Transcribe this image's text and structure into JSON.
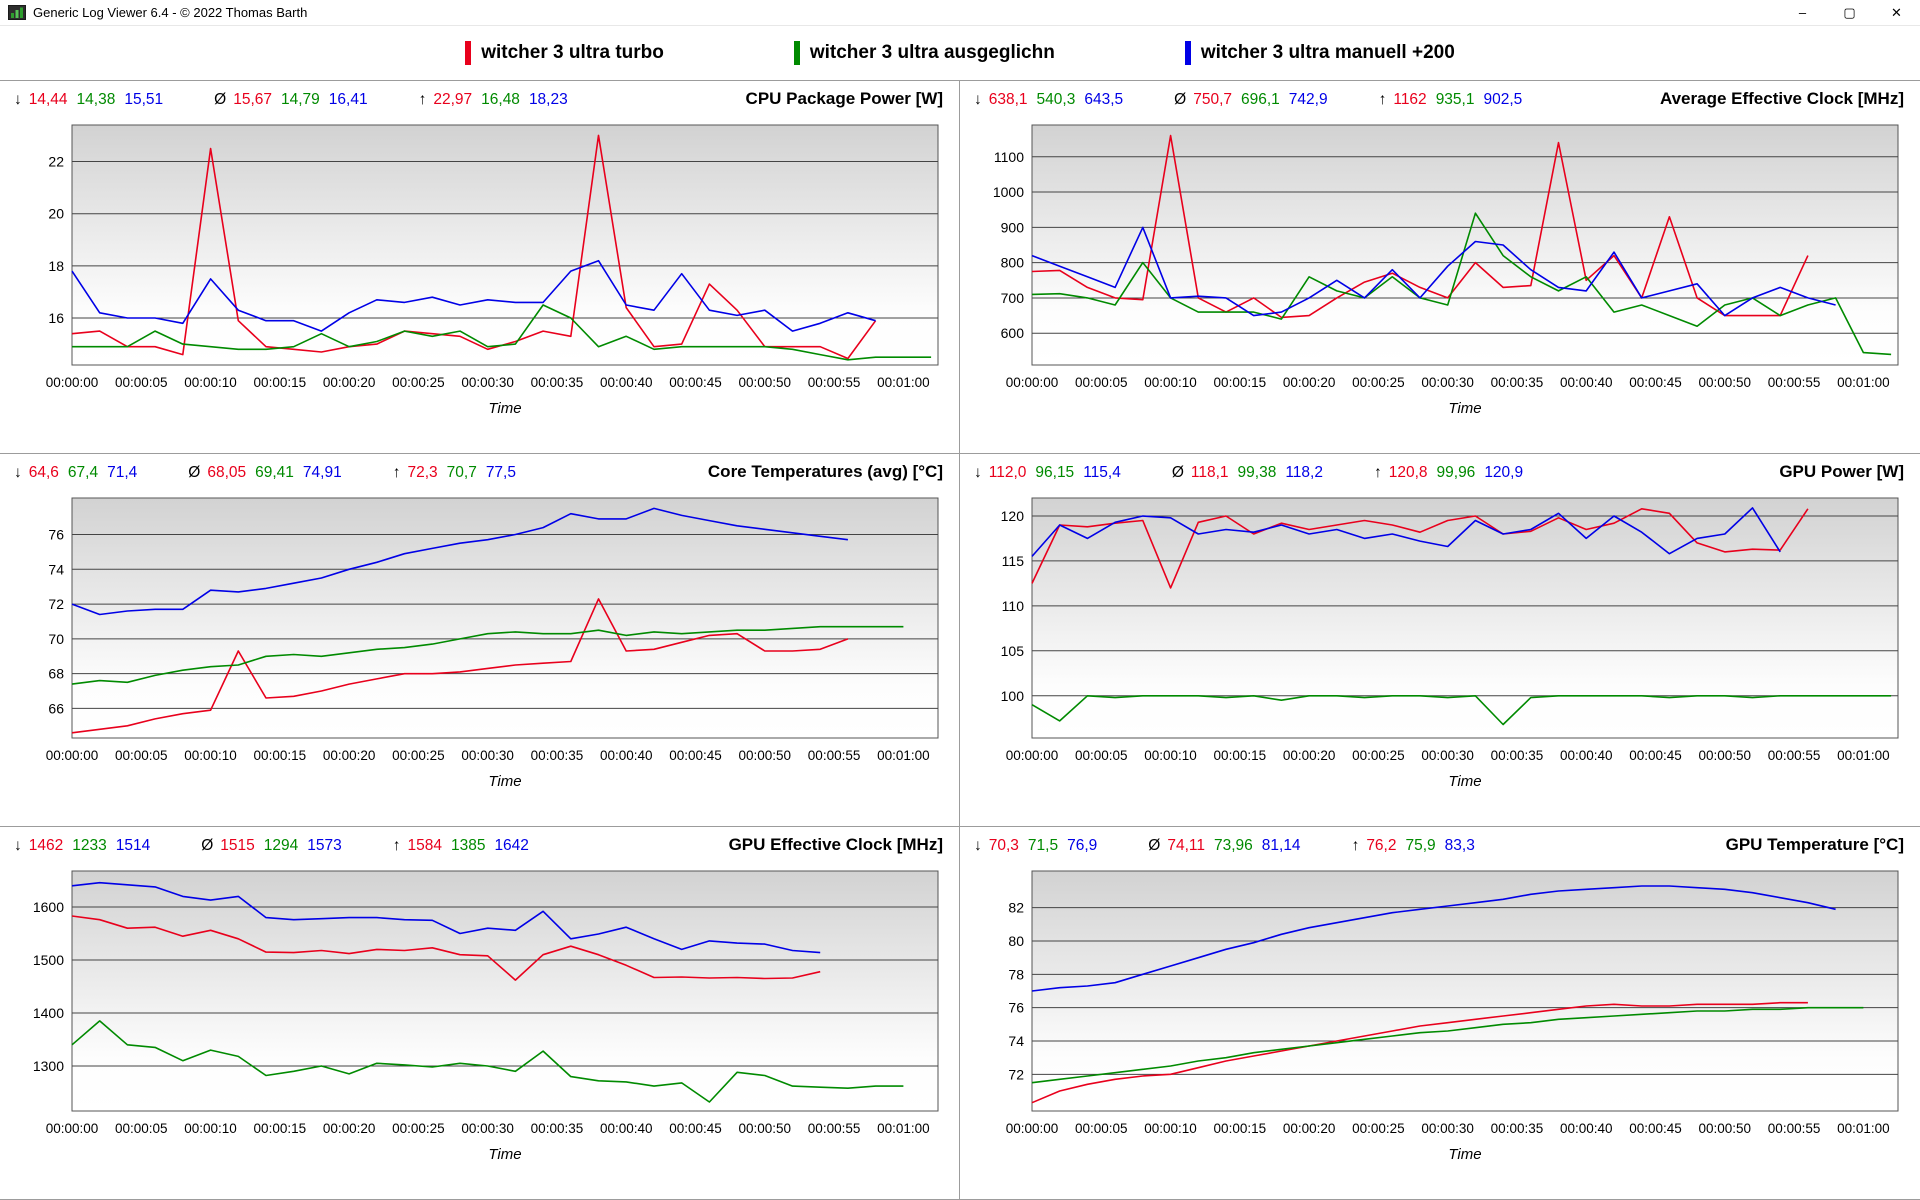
{
  "window": {
    "title": "Generic Log Viewer 6.4 - © 2022 Thomas Barth",
    "minimize_label": "–",
    "maximize_label": "▢",
    "close_label": "✕"
  },
  "legend": {
    "items": [
      {
        "label": "witcher 3 ultra turbo",
        "color": "#e8001c"
      },
      {
        "label": "witcher 3 ultra ausgeglichn",
        "color": "#008a00"
      },
      {
        "label": "witcher 3 ultra manuell +200",
        "color": "#0000e6"
      }
    ]
  },
  "series_colors": [
    "#e8001c",
    "#008a00",
    "#0000e6"
  ],
  "stats_symbols": {
    "min": "↓",
    "avg": "Ø",
    "max": "↑"
  },
  "x_axis": {
    "label": "Time",
    "domain": 62.5,
    "tick_times": [
      0,
      5,
      10,
      15,
      20,
      25,
      30,
      35,
      40,
      45,
      50,
      55,
      60
    ],
    "tick_labels": [
      "00:00:00",
      "00:00:05",
      "00:00:10",
      "00:00:15",
      "00:00:20",
      "00:00:25",
      "00:00:30",
      "00:00:35",
      "00:00:40",
      "00:00:45",
      "00:00:50",
      "00:00:55",
      "00:01:00"
    ]
  },
  "chart_data": [
    {
      "type": "line",
      "title": "CPU Package Power [W]",
      "stats": {
        "min": [
          "14,44",
          "14,38",
          "15,51"
        ],
        "avg": [
          "15,67",
          "14,79",
          "16,41"
        ],
        "max": [
          "22,97",
          "16,48",
          "18,23"
        ]
      },
      "y_ticks": [
        16,
        18,
        20,
        22
      ],
      "y_range": [
        14.2,
        23.4
      ],
      "series": [
        {
          "name": "witcher 3 ultra turbo",
          "color_index": 0,
          "dt": 2,
          "values": [
            15.4,
            15.5,
            14.9,
            14.9,
            14.6,
            22.5,
            15.9,
            14.9,
            14.8,
            14.7,
            14.9,
            15.0,
            15.5,
            15.4,
            15.3,
            14.8,
            15.1,
            15.5,
            15.3,
            23.0,
            16.4,
            14.9,
            15.0,
            17.3,
            16.3,
            14.9,
            14.9,
            14.9,
            14.45,
            15.9
          ]
        },
        {
          "name": "witcher 3 ultra ausgeglichn",
          "color_index": 1,
          "dt": 2,
          "values": [
            14.9,
            14.9,
            14.9,
            15.5,
            15.0,
            14.9,
            14.8,
            14.8,
            14.9,
            15.4,
            14.9,
            15.1,
            15.5,
            15.3,
            15.5,
            14.9,
            15.0,
            16.5,
            16.0,
            14.9,
            15.3,
            14.8,
            14.9,
            14.9,
            14.9,
            14.9,
            14.8,
            14.6,
            14.4,
            14.5,
            14.5,
            14.5
          ]
        },
        {
          "name": "witcher 3 ultra manuell +200",
          "color_index": 2,
          "dt": 2,
          "values": [
            17.8,
            16.2,
            16.0,
            16.0,
            15.8,
            17.5,
            16.3,
            15.9,
            15.9,
            15.5,
            16.2,
            16.7,
            16.6,
            16.8,
            16.5,
            16.7,
            16.6,
            16.6,
            17.8,
            18.2,
            16.5,
            16.3,
            17.7,
            16.3,
            16.1,
            16.3,
            15.5,
            15.8,
            16.2,
            15.9
          ]
        }
      ]
    },
    {
      "type": "line",
      "title": "Average Effective Clock [MHz]",
      "stats": {
        "min": [
          "638,1",
          "540,3",
          "643,5"
        ],
        "avg": [
          "750,7",
          "696,1",
          "742,9"
        ],
        "max": [
          "1162",
          "935,1",
          "902,5"
        ]
      },
      "y_ticks": [
        600,
        700,
        800,
        900,
        1000,
        1100
      ],
      "y_range": [
        510,
        1190
      ],
      "series": [
        {
          "name": "witcher 3 ultra turbo",
          "color_index": 0,
          "dt": 2,
          "values": [
            775,
            778,
            730,
            700,
            695,
            1160,
            700,
            660,
            700,
            645,
            650,
            700,
            745,
            770,
            730,
            700,
            800,
            730,
            735,
            1140,
            750,
            820,
            700,
            930,
            700,
            650,
            650,
            650,
            820
          ]
        },
        {
          "name": "witcher 3 ultra ausgeglichn",
          "color_index": 1,
          "dt": 2,
          "values": [
            710,
            712,
            700,
            680,
            800,
            700,
            660,
            660,
            660,
            640,
            760,
            720,
            700,
            760,
            700,
            680,
            940,
            820,
            760,
            720,
            760,
            660,
            680,
            650,
            620,
            680,
            700,
            650,
            680,
            700,
            545,
            540
          ]
        },
        {
          "name": "witcher 3 ultra manuell +200",
          "color_index": 2,
          "dt": 2,
          "values": [
            820,
            790,
            760,
            730,
            900,
            700,
            705,
            700,
            650,
            660,
            700,
            750,
            700,
            780,
            700,
            790,
            860,
            850,
            780,
            730,
            720,
            830,
            700,
            720,
            740,
            650,
            700,
            730,
            700,
            680
          ]
        }
      ]
    },
    {
      "type": "line",
      "title": "Core Temperatures (avg) [°C]",
      "stats": {
        "min": [
          "64,6",
          "67,4",
          "71,4"
        ],
        "avg": [
          "68,05",
          "69,41",
          "74,91"
        ],
        "max": [
          "72,3",
          "70,7",
          "77,5"
        ]
      },
      "y_ticks": [
        66,
        68,
        70,
        72,
        74,
        76
      ],
      "y_range": [
        64.3,
        78.1
      ],
      "series": [
        {
          "name": "witcher 3 ultra turbo",
          "color_index": 0,
          "dt": 2,
          "values": [
            64.6,
            64.8,
            65.0,
            65.4,
            65.7,
            65.9,
            69.3,
            66.6,
            66.7,
            67.0,
            67.4,
            67.7,
            68.0,
            68.0,
            68.1,
            68.3,
            68.5,
            68.6,
            68.7,
            72.3,
            69.3,
            69.4,
            69.8,
            70.2,
            70.3,
            69.3,
            69.3,
            69.4,
            70.0
          ]
        },
        {
          "name": "witcher 3 ultra ausgeglichn",
          "color_index": 1,
          "dt": 2,
          "values": [
            67.4,
            67.6,
            67.5,
            67.9,
            68.2,
            68.4,
            68.5,
            69.0,
            69.1,
            69.0,
            69.2,
            69.4,
            69.5,
            69.7,
            70.0,
            70.3,
            70.4,
            70.3,
            70.3,
            70.5,
            70.2,
            70.4,
            70.3,
            70.4,
            70.5,
            70.5,
            70.6,
            70.7,
            70.7,
            70.7,
            70.7
          ]
        },
        {
          "name": "witcher 3 ultra manuell +200",
          "color_index": 2,
          "dt": 2,
          "values": [
            72.0,
            71.4,
            71.6,
            71.7,
            71.7,
            72.8,
            72.7,
            72.9,
            73.2,
            73.5,
            74.0,
            74.4,
            74.9,
            75.2,
            75.5,
            75.7,
            76.0,
            76.4,
            77.2,
            76.9,
            76.9,
            77.5,
            77.1,
            76.8,
            76.5,
            76.3,
            76.1,
            75.9,
            75.7
          ]
        }
      ]
    },
    {
      "type": "line",
      "title": "GPU Power [W]",
      "stats": {
        "min": [
          "112,0",
          "96,15",
          "115,4"
        ],
        "avg": [
          "118,1",
          "99,38",
          "118,2"
        ],
        "max": [
          "120,8",
          "99,96",
          "120,9"
        ]
      },
      "y_ticks": [
        100,
        105,
        110,
        115,
        120
      ],
      "y_range": [
        95.3,
        122.0
      ],
      "series": [
        {
          "name": "witcher 3 ultra turbo",
          "color_index": 0,
          "dt": 2,
          "values": [
            112.5,
            119.0,
            118.8,
            119.2,
            119.5,
            112.0,
            119.3,
            120.0,
            118.0,
            119.2,
            118.5,
            119.0,
            119.5,
            119.0,
            118.2,
            119.5,
            120.0,
            118.0,
            118.3,
            119.8,
            118.5,
            119.2,
            120.8,
            120.3,
            117.0,
            116.0,
            116.3,
            116.2,
            120.8
          ]
        },
        {
          "name": "witcher 3 ultra ausgeglichn",
          "color_index": 1,
          "dt": 2,
          "values": [
            99.0,
            97.2,
            100.0,
            99.8,
            100.0,
            100.0,
            100.0,
            99.8,
            100.0,
            99.5,
            100.0,
            100.0,
            99.8,
            100.0,
            100.0,
            99.8,
            100.0,
            96.8,
            99.8,
            100.0,
            100.0,
            100.0,
            100.0,
            99.8,
            100.0,
            100.0,
            99.8,
            100.0,
            100.0,
            100.0,
            100.0,
            100.0
          ]
        },
        {
          "name": "witcher 3 ultra manuell +200",
          "color_index": 2,
          "dt": 2,
          "values": [
            115.5,
            119.0,
            117.5,
            119.3,
            120.0,
            119.8,
            118.0,
            118.5,
            118.2,
            119.0,
            118.0,
            118.5,
            117.5,
            118.0,
            117.2,
            116.6,
            119.5,
            118.0,
            118.5,
            120.3,
            117.5,
            120.0,
            118.2,
            115.8,
            117.5,
            118.0,
            120.9,
            116.0
          ]
        }
      ]
    },
    {
      "type": "line",
      "title": "GPU Effective Clock [MHz]",
      "stats": {
        "min": [
          "1462",
          "1233",
          "1514"
        ],
        "avg": [
          "1515",
          "1294",
          "1573"
        ],
        "max": [
          "1584",
          "1385",
          "1642"
        ]
      },
      "y_ticks": [
        1300,
        1400,
        1500,
        1600
      ],
      "y_range": [
        1215,
        1668
      ],
      "series": [
        {
          "name": "witcher 3 ultra turbo",
          "color_index": 0,
          "dt": 2,
          "values": [
            1583,
            1576,
            1560,
            1562,
            1545,
            1556,
            1540,
            1515,
            1514,
            1518,
            1512,
            1520,
            1518,
            1523,
            1510,
            1508,
            1462,
            1510,
            1526,
            1510,
            1490,
            1467,
            1468,
            1466,
            1467,
            1465,
            1466,
            1478
          ]
        },
        {
          "name": "witcher 3 ultra ausgeglichn",
          "color_index": 1,
          "dt": 2,
          "values": [
            1340,
            1385,
            1340,
            1335,
            1310,
            1330,
            1318,
            1282,
            1290,
            1300,
            1285,
            1305,
            1302,
            1298,
            1305,
            1300,
            1290,
            1328,
            1280,
            1272,
            1270,
            1262,
            1268,
            1232,
            1288,
            1282,
            1262,
            1260,
            1258,
            1262,
            1262
          ]
        },
        {
          "name": "witcher 3 ultra manuell +200",
          "color_index": 2,
          "dt": 2,
          "values": [
            1640,
            1646,
            1642,
            1638,
            1620,
            1613,
            1620,
            1580,
            1576,
            1578,
            1580,
            1580,
            1576,
            1575,
            1550,
            1560,
            1556,
            1592,
            1540,
            1549,
            1562,
            1540,
            1520,
            1536,
            1532,
            1530,
            1518,
            1514
          ]
        }
      ]
    },
    {
      "type": "line",
      "title": "GPU Temperature [°C]",
      "stats": {
        "min": [
          "70,3",
          "71,5",
          "76,9"
        ],
        "avg": [
          "74,11",
          "73,96",
          "81,14"
        ],
        "max": [
          "76,2",
          "75,9",
          "83,3"
        ]
      },
      "y_ticks": [
        72,
        74,
        76,
        78,
        80,
        82
      ],
      "y_range": [
        69.8,
        84.2
      ],
      "series": [
        {
          "name": "witcher 3 ultra turbo",
          "color_index": 0,
          "dt": 2,
          "values": [
            70.3,
            71.0,
            71.4,
            71.7,
            71.9,
            72.0,
            72.4,
            72.8,
            73.1,
            73.4,
            73.7,
            74.0,
            74.3,
            74.6,
            74.9,
            75.1,
            75.3,
            75.5,
            75.7,
            75.9,
            76.1,
            76.2,
            76.1,
            76.1,
            76.2,
            76.2,
            76.2,
            76.3,
            76.3
          ]
        },
        {
          "name": "witcher 3 ultra ausgeglichn",
          "color_index": 1,
          "dt": 2,
          "values": [
            71.5,
            71.7,
            71.9,
            72.1,
            72.3,
            72.5,
            72.8,
            73.0,
            73.3,
            73.5,
            73.7,
            73.9,
            74.1,
            74.3,
            74.5,
            74.6,
            74.8,
            75.0,
            75.1,
            75.3,
            75.4,
            75.5,
            75.6,
            75.7,
            75.8,
            75.8,
            75.9,
            75.9,
            76.0,
            76.0,
            76.0
          ]
        },
        {
          "name": "witcher 3 ultra manuell +200",
          "color_index": 2,
          "dt": 2,
          "values": [
            77.0,
            77.2,
            77.3,
            77.5,
            78.0,
            78.5,
            79.0,
            79.5,
            79.9,
            80.4,
            80.8,
            81.1,
            81.4,
            81.7,
            81.9,
            82.1,
            82.3,
            82.5,
            82.8,
            83.0,
            83.1,
            83.2,
            83.3,
            83.3,
            83.2,
            83.1,
            82.9,
            82.6,
            82.3,
            81.9
          ]
        }
      ]
    }
  ]
}
